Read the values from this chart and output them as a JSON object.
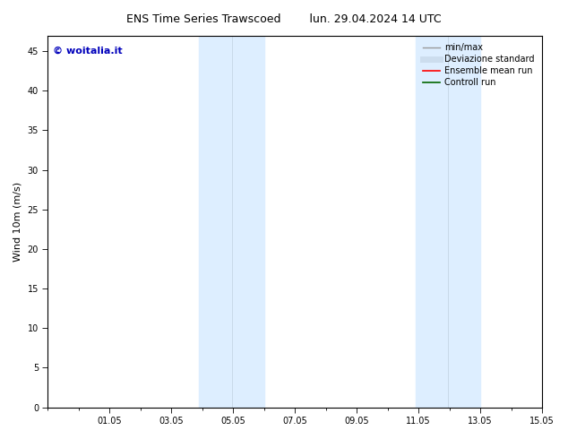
{
  "title_left": "ENS Time Series Trawscoed",
  "title_right": "lun. 29.04.2024 14 UTC",
  "ylabel": "Wind 10m (m/s)",
  "ylim": [
    0,
    47
  ],
  "yticks": [
    0,
    5,
    10,
    15,
    20,
    25,
    30,
    35,
    40,
    45
  ],
  "xtick_labels": [
    "01.05",
    "03.05",
    "05.05",
    "07.05",
    "09.05",
    "11.05",
    "13.05",
    "15.05"
  ],
  "xtick_positions": [
    2,
    4,
    6,
    8,
    10,
    12,
    14,
    16
  ],
  "xlim": [
    0,
    16
  ],
  "shaded_bands": [
    {
      "x_start": 4.5,
      "x_end": 5.5,
      "color": "#ddeeff"
    },
    {
      "x_start": 5.5,
      "x_end": 6.5,
      "color": "#ddeeff"
    },
    {
      "x_start": 11.0,
      "x_end": 12.0,
      "color": "#ddeeff"
    },
    {
      "x_start": 12.0,
      "x_end": 13.5,
      "color": "#ddeeff"
    }
  ],
  "shade_color": "#ddeeff",
  "watermark_text": "© woitalia.it",
  "watermark_color": "#0000bb",
  "legend_entries": [
    {
      "label": "min/max",
      "color": "#999999",
      "lw": 1.0,
      "style": "solid"
    },
    {
      "label": "Deviazione standard",
      "color": "#ccddee",
      "lw": 5,
      "style": "solid"
    },
    {
      "label": "Ensemble mean run",
      "color": "#ff0000",
      "lw": 1.2,
      "style": "solid"
    },
    {
      "label": "Controll run",
      "color": "#006600",
      "lw": 1.2,
      "style": "solid"
    }
  ],
  "bg_color": "#ffffff",
  "spine_color": "#000000",
  "tick_color": "#000000",
  "font_size_title": 9,
  "font_size_axis": 8,
  "font_size_tick": 7,
  "font_size_legend": 7,
  "font_size_watermark": 8
}
